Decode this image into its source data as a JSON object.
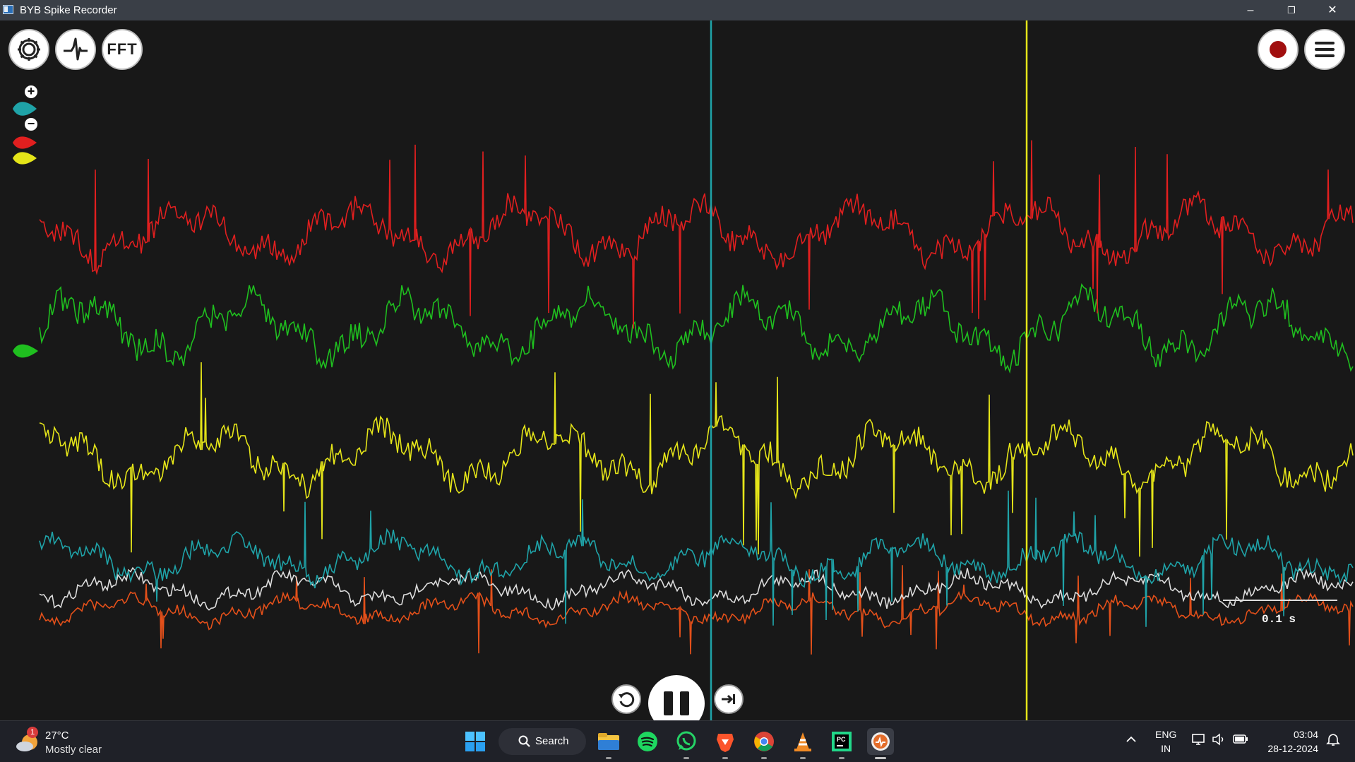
{
  "window": {
    "title": "BYB Spike Recorder",
    "controls": [
      "minimize",
      "restore",
      "close"
    ]
  },
  "toolbar": {
    "settings_icon": "gear-icon",
    "spike_icon": "spike-waveform-icon",
    "fft_label": "FFT",
    "record_icon": "record-icon",
    "menu_icon": "hamburger-menu-icon"
  },
  "channels": [
    {
      "color": "#e11f1f",
      "name": "red"
    },
    {
      "color": "#1fbf1f",
      "name": "green",
      "selected": true
    },
    {
      "color": "#e5e519",
      "name": "yellow"
    },
    {
      "color": "#1fa3a8",
      "name": "teal"
    },
    {
      "color": "#dcdcdc",
      "name": "white"
    },
    {
      "color": "#e4501a",
      "name": "orange"
    }
  ],
  "zoom": {
    "in": "+",
    "out": "−"
  },
  "scale": {
    "label": "0.1 s"
  },
  "playback": {
    "reset_icon": "rewind-icon",
    "pause_icon": "pause-icon",
    "forward_icon": "skip-to-end-icon"
  },
  "taskbar": {
    "weather": {
      "temp": "27°C",
      "condition": "Mostly clear",
      "badge": "1"
    },
    "search_label": "Search",
    "apps": [
      "windows-start",
      "file-explorer",
      "spotify",
      "whatsapp",
      "brave",
      "chrome",
      "vlc",
      "pycharm",
      "spike-recorder"
    ],
    "language": {
      "line1": "ENG",
      "line2": "IN"
    },
    "clock": {
      "time": "03:04",
      "date": "28-12-2024"
    }
  }
}
